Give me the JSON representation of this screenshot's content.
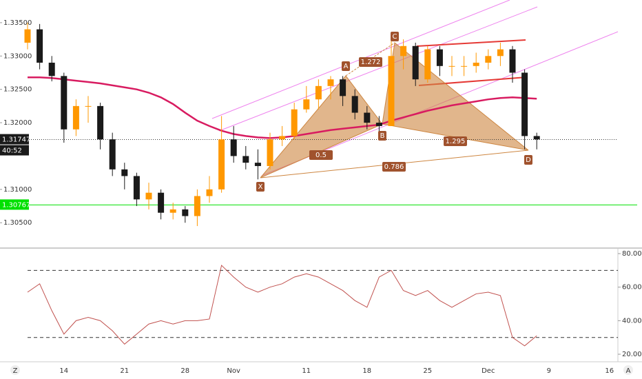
{
  "chart_data": [
    {
      "type": "candlestick",
      "open": [
        1.332,
        1.334,
        1.329,
        1.327,
        1.319,
        1.3225,
        1.3225,
        1.3175,
        1.313,
        1.312,
        1.3085,
        1.3095,
        1.3065,
        1.307,
        1.306,
        1.309,
        1.31,
        1.3175,
        1.315,
        1.314,
        1.3135,
        1.3175,
        1.318,
        1.322,
        1.3235,
        1.3255,
        1.3265,
        1.324,
        1.3215,
        1.32,
        1.3195,
        1.33,
        1.3315,
        1.3265,
        1.331,
        1.3285,
        1.3285,
        1.3285,
        1.329,
        1.33,
        1.331,
        1.3275,
        1.318,
        null,
        null,
        null,
        null,
        null,
        null
      ],
      "high": [
        1.335,
        1.3348,
        1.33,
        1.3275,
        1.3235,
        1.324,
        1.323,
        1.3185,
        1.314,
        1.3125,
        1.311,
        1.31,
        1.308,
        1.3075,
        1.31,
        1.312,
        1.321,
        1.3195,
        1.3165,
        1.316,
        1.3185,
        1.3195,
        1.323,
        1.3255,
        1.3265,
        1.327,
        1.327,
        1.325,
        1.3225,
        1.321,
        1.3325,
        1.3325,
        1.332,
        1.3315,
        1.3315,
        1.33,
        1.33,
        1.3305,
        1.331,
        1.332,
        1.3315,
        1.328,
        1.3185,
        null,
        null,
        null,
        null,
        null,
        null
      ],
      "low": [
        1.331,
        1.328,
        1.3262,
        1.317,
        1.318,
        1.32,
        1.316,
        1.312,
        1.31,
        1.3075,
        1.307,
        1.3055,
        1.3055,
        1.305,
        1.3045,
        1.308,
        1.3095,
        1.314,
        1.313,
        1.3115,
        1.313,
        1.3165,
        1.3175,
        1.3215,
        1.322,
        1.3235,
        1.3225,
        1.3205,
        1.319,
        1.3185,
        1.3195,
        1.328,
        1.3255,
        1.326,
        1.327,
        1.327,
        1.327,
        1.3275,
        1.328,
        1.3285,
        1.326,
        1.316,
        1.316,
        null,
        null,
        null,
        null,
        null,
        null
      ],
      "close": [
        1.334,
        1.329,
        1.327,
        1.319,
        1.3225,
        1.3225,
        1.3175,
        1.313,
        1.312,
        1.3085,
        1.3095,
        1.3065,
        1.307,
        1.306,
        1.309,
        1.31,
        1.3175,
        1.315,
        1.314,
        1.3135,
        1.3175,
        1.318,
        1.322,
        1.3235,
        1.3255,
        1.3265,
        1.324,
        1.3215,
        1.32,
        1.3195,
        1.33,
        1.3315,
        1.3265,
        1.331,
        1.3285,
        1.3285,
        1.3285,
        1.329,
        1.33,
        1.331,
        1.3275,
        1.318,
        1.3175,
        null,
        null,
        null,
        null,
        null,
        null
      ],
      "up_color": "#ff9800",
      "down_color": "#1a1a1a",
      "moving_average": {
        "color": "#d81b60",
        "values": [
          1.3268,
          1.3268,
          1.3267,
          1.3265,
          1.3263,
          1.3261,
          1.3259,
          1.3256,
          1.3253,
          1.325,
          1.3245,
          1.3238,
          1.3228,
          1.3215,
          1.3203,
          1.3195,
          1.3188,
          1.3183,
          1.318,
          1.3178,
          1.3177,
          1.3178,
          1.318,
          1.3183,
          1.3186,
          1.3189,
          1.3191,
          1.3193,
          1.3195,
          1.3197,
          1.3203,
          1.3208,
          1.3213,
          1.3218,
          1.3222,
          1.3226,
          1.3229,
          1.3232,
          1.3235,
          1.3237,
          1.3238,
          1.3237,
          1.3236,
          null,
          null,
          null,
          null,
          null,
          null
        ]
      },
      "ylim": [
        1.3012,
        1.3384
      ],
      "yticks": [
        {
          "value": 1.335,
          "label": "1.33500"
        },
        {
          "value": 1.33,
          "label": "1.33000"
        },
        {
          "value": 1.325,
          "label": "1.32500"
        },
        {
          "value": 1.32,
          "label": "1.32000"
        },
        {
          "value": 1.31,
          "label": "1.31000"
        },
        {
          "value": 1.305,
          "label": "1.30500"
        }
      ],
      "last_price": {
        "value": 1.31747,
        "label": "1.31747",
        "countdown": "40:52"
      },
      "level": {
        "value": 1.30767,
        "label": "1.30767",
        "color": "#00e000"
      },
      "pattern": {
        "points": [
          "X",
          "A",
          "B",
          "C",
          "D"
        ],
        "ratios": [
          0.5,
          1.272,
          1.295,
          0.786
        ]
      }
    },
    {
      "type": "line",
      "categories": [
        null,
        null,
        null,
        "14",
        null,
        null,
        null,
        null,
        "21",
        null,
        null,
        null,
        null,
        "28",
        null,
        null,
        null,
        "Nov",
        null,
        null,
        null,
        null,
        null,
        "11",
        null,
        null,
        null,
        null,
        "18",
        null,
        null,
        null,
        null,
        "25",
        null,
        null,
        null,
        null,
        "Dec",
        null,
        null,
        null,
        null,
        "9",
        null,
        null,
        null,
        null,
        "16"
      ],
      "values": [
        57,
        62,
        46,
        32,
        40,
        42,
        40,
        34,
        26,
        32,
        38,
        40,
        38,
        40,
        40,
        41,
        73,
        66,
        60,
        57,
        60,
        62,
        66,
        68,
        66,
        62,
        58,
        52,
        48,
        66,
        70,
        58,
        55,
        58,
        52,
        48,
        52,
        56,
        57,
        55,
        30,
        25,
        31,
        null,
        null,
        null,
        null,
        null,
        null
      ],
      "color": "#c0504d",
      "ylim": [
        15.5,
        83.3
      ],
      "yticks": [
        {
          "value": 80,
          "label": "80.00"
        },
        {
          "value": 60,
          "label": "60.00"
        },
        {
          "value": 40,
          "label": "40.00"
        },
        {
          "value": 20,
          "label": "20.00"
        }
      ],
      "levels": [
        70,
        30
      ]
    }
  ],
  "footer": {
    "left": "Z",
    "right": "A"
  }
}
